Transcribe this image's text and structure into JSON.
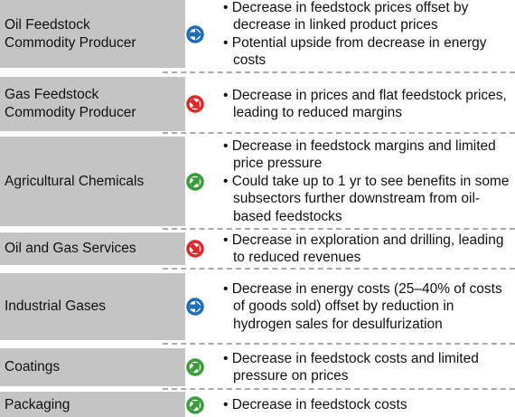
{
  "rows": [
    {
      "label": "Oil Feedstock Commodity Producer",
      "bullets": [
        "Decrease in feedstock prices offset by decrease in linked product prices",
        "Potential upside from decrease in energy costs"
      ]
    },
    {
      "label": "Gas Feedstock Commodity Producer",
      "bullets": [
        "Decrease in prices and flat feedstock prices, leading to reduced margins"
      ]
    },
    {
      "label": "Agricultural Chemicals",
      "bullets": [
        "Decrease in feedstock margins and limited price pressure",
        "Could take up to 1 yr to see benefits in some subsectors further downstream from oil-based feedstocks"
      ]
    },
    {
      "label": "Oil and Gas Services",
      "bullets": [
        "Decrease in exploration and drilling, leading to reduced revenues"
      ]
    },
    {
      "label": "Industrial Gases",
      "bullets": [
        "Decrease in energy costs (25–40% of costs of goods sold) offset by reduction in hydrogen sales for desulfurization"
      ]
    },
    {
      "label": "Coatings",
      "bullets": [
        "Decrease in feedstock costs and limited pressure on prices"
      ]
    },
    {
      "label": "Packaging",
      "bullets": [
        "Decrease in feedstock costs"
      ]
    }
  ]
}
